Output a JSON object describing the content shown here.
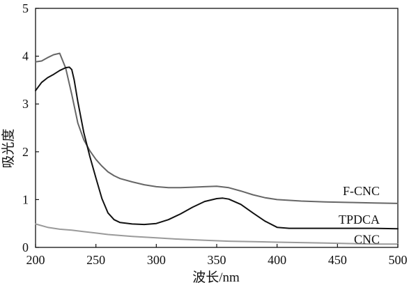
{
  "chart_data": {
    "type": "line",
    "xlabel": "波长/nm",
    "ylabel": "吸光度",
    "xlim": [
      200,
      500
    ],
    "ylim": [
      0,
      5
    ],
    "xticks": [
      200,
      250,
      300,
      350,
      400,
      450,
      500
    ],
    "yticks": [
      0,
      1,
      2,
      3,
      4,
      5
    ],
    "grid": false,
    "series": [
      {
        "name": "F-CNC",
        "color": "#666666",
        "x": [
          200,
          205,
          210,
          215,
          220,
          225,
          230,
          235,
          240,
          245,
          250,
          255,
          260,
          265,
          270,
          280,
          290,
          300,
          310,
          320,
          330,
          340,
          350,
          360,
          370,
          380,
          390,
          400,
          420,
          440,
          460,
          480,
          500
        ],
        "y": [
          3.88,
          3.9,
          3.97,
          4.03,
          4.06,
          3.75,
          3.2,
          2.6,
          2.25,
          2.02,
          1.84,
          1.7,
          1.58,
          1.5,
          1.44,
          1.37,
          1.31,
          1.27,
          1.25,
          1.25,
          1.26,
          1.27,
          1.28,
          1.25,
          1.18,
          1.1,
          1.04,
          1.0,
          0.97,
          0.95,
          0.94,
          0.93,
          0.92
        ]
      },
      {
        "name": "TPDCA",
        "color": "#111111",
        "x": [
          200,
          205,
          210,
          215,
          220,
          225,
          228,
          230,
          232,
          235,
          240,
          245,
          250,
          255,
          260,
          265,
          270,
          280,
          290,
          300,
          310,
          320,
          330,
          340,
          350,
          355,
          360,
          370,
          380,
          390,
          400,
          410,
          420,
          440,
          460,
          480,
          500
        ],
        "y": [
          3.28,
          3.45,
          3.55,
          3.62,
          3.7,
          3.76,
          3.77,
          3.72,
          3.5,
          3.05,
          2.4,
          1.9,
          1.45,
          1.02,
          0.72,
          0.58,
          0.52,
          0.49,
          0.48,
          0.5,
          0.58,
          0.7,
          0.84,
          0.96,
          1.02,
          1.03,
          1.01,
          0.9,
          0.72,
          0.55,
          0.42,
          0.4,
          0.4,
          0.4,
          0.4,
          0.4,
          0.39
        ]
      },
      {
        "name": "CNC",
        "color": "#9a9a9a",
        "x": [
          200,
          210,
          220,
          230,
          240,
          250,
          260,
          280,
          300,
          320,
          340,
          360,
          380,
          400,
          420,
          440,
          460,
          480,
          500
        ],
        "y": [
          0.49,
          0.42,
          0.38,
          0.36,
          0.33,
          0.3,
          0.27,
          0.23,
          0.2,
          0.17,
          0.15,
          0.13,
          0.12,
          0.11,
          0.1,
          0.09,
          0.08,
          0.07,
          0.07
        ]
      }
    ],
    "legend": "inline-right",
    "labels": [
      "F-CNC",
      "TPDCA",
      "CNC"
    ]
  }
}
